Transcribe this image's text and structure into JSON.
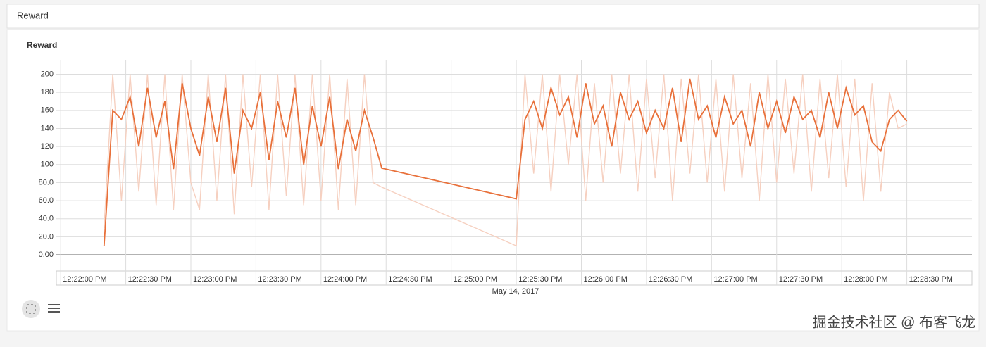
{
  "header": {
    "title": "Reward"
  },
  "chart_data": {
    "type": "line",
    "title": "Reward",
    "x_label": "May 14, 2017",
    "x": [
      44540,
      44544,
      44548,
      44552,
      44556,
      44560,
      44564,
      44568,
      44572,
      44576,
      44580,
      44584,
      44588,
      44592,
      44596,
      44600,
      44604,
      44608,
      44612,
      44616,
      44620,
      44624,
      44628,
      44632,
      44636,
      44640,
      44644,
      44648,
      44652,
      44656,
      44660,
      44664,
      44668,
      44730,
      44734,
      44738,
      44742,
      44746,
      44750,
      44754,
      44758,
      44762,
      44766,
      44770,
      44774,
      44778,
      44782,
      44786,
      44790,
      44794,
      44798,
      44802,
      44806,
      44810,
      44814,
      44818,
      44822,
      44826,
      44830,
      44834,
      44838,
      44842,
      44846,
      44850,
      44854,
      44858,
      44862,
      44866,
      44870,
      44874,
      44878,
      44882,
      44886,
      44890,
      44894,
      44898,
      44902,
      44906,
      44910
    ],
    "series": [
      {
        "color": "#f6d0c0",
        "values": [
          30,
          200,
          60,
          200,
          70,
          200,
          55,
          200,
          50,
          200,
          80,
          50,
          200,
          60,
          200,
          45,
          200,
          75,
          200,
          50,
          200,
          65,
          200,
          55,
          200,
          60,
          200,
          50,
          195,
          55,
          200,
          80,
          75,
          10,
          200,
          90,
          200,
          70,
          200,
          100,
          200,
          60,
          190,
          80,
          200,
          90,
          200,
          70,
          195,
          85,
          200,
          60,
          195,
          90,
          200,
          80,
          195,
          70,
          200,
          85,
          190,
          60,
          200,
          80,
          195,
          90,
          200,
          70,
          195,
          85,
          200,
          75,
          195,
          60,
          190,
          70,
          180,
          140,
          145
        ]
      },
      {
        "color": "#e8703a",
        "values": [
          10,
          160,
          150,
          175,
          120,
          185,
          130,
          170,
          95,
          190,
          140,
          110,
          175,
          125,
          185,
          90,
          160,
          140,
          180,
          105,
          170,
          130,
          185,
          100,
          165,
          120,
          175,
          95,
          150,
          115,
          160,
          130,
          96,
          62,
          150,
          170,
          140,
          185,
          155,
          175,
          130,
          190,
          145,
          165,
          120,
          180,
          150,
          170,
          135,
          160,
          140,
          185,
          125,
          195,
          150,
          165,
          130,
          175,
          145,
          160,
          120,
          180,
          140,
          170,
          135,
          175,
          150,
          160,
          130,
          180,
          140,
          185,
          155,
          165,
          125,
          115,
          150,
          160,
          148
        ]
      }
    ],
    "xlim": [
      44518,
      44940
    ],
    "ylim": [
      -14,
      216
    ],
    "xticks": [
      {
        "value": 44520,
        "label": "12:22:00 PM"
      },
      {
        "value": 44550,
        "label": "12:22:30 PM"
      },
      {
        "value": 44580,
        "label": "12:23:00 PM"
      },
      {
        "value": 44610,
        "label": "12:23:30 PM"
      },
      {
        "value": 44640,
        "label": "12:24:00 PM"
      },
      {
        "value": 44670,
        "label": "12:24:30 PM"
      },
      {
        "value": 44700,
        "label": "12:25:00 PM"
      },
      {
        "value": 44730,
        "label": "12:25:30 PM"
      },
      {
        "value": 44760,
        "label": "12:26:00 PM"
      },
      {
        "value": 44790,
        "label": "12:26:30 PM"
      },
      {
        "value": 44820,
        "label": "12:27:00 PM"
      },
      {
        "value": 44850,
        "label": "12:27:30 PM"
      },
      {
        "value": 44880,
        "label": "12:28:00 PM"
      },
      {
        "value": 44910,
        "label": "12:28:30 PM"
      }
    ],
    "yticks": [
      {
        "value": 0,
        "label": "0.00"
      },
      {
        "value": 20,
        "label": "20.0"
      },
      {
        "value": 40,
        "label": "40.0"
      },
      {
        "value": 60,
        "label": "60.0"
      },
      {
        "value": 80,
        "label": "80.0"
      },
      100,
      120,
      140,
      160,
      180,
      200
    ],
    "grid": true
  },
  "watermark": "掘金技术社区 @ 布客飞龙"
}
